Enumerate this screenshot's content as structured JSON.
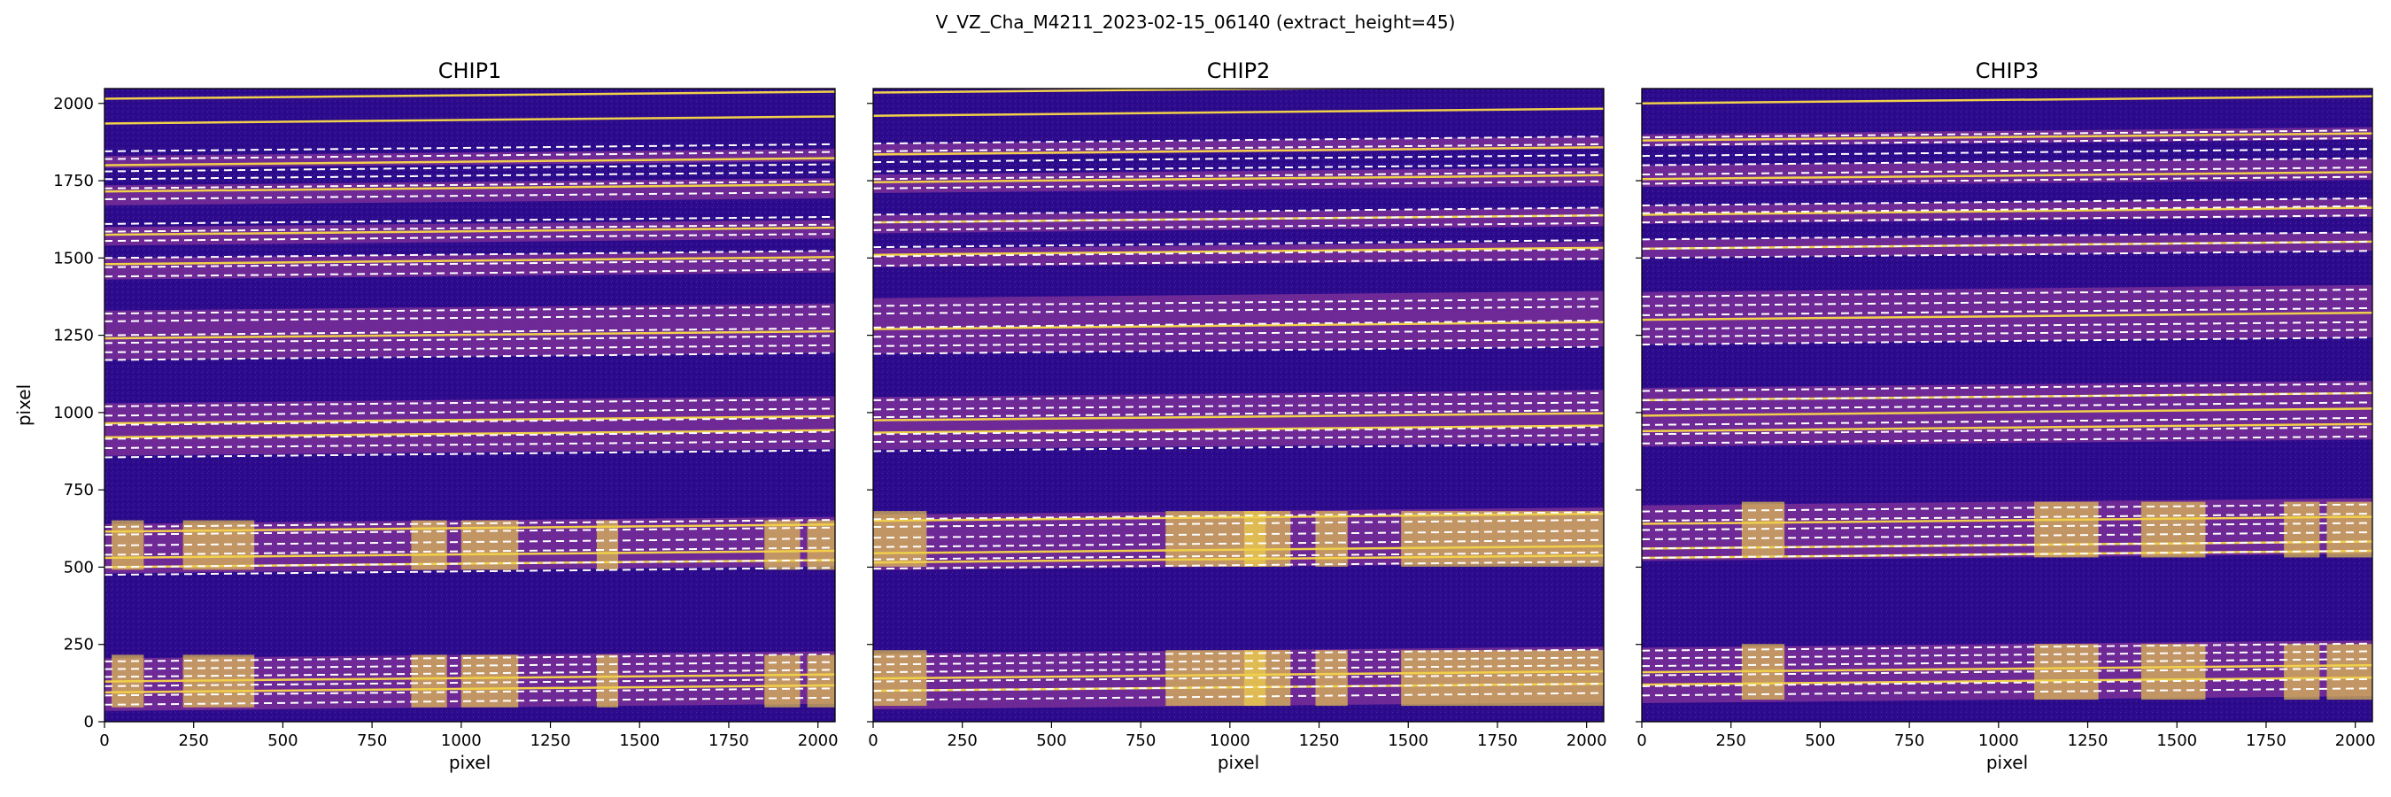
{
  "figure": {
    "suptitle": "V_VZ_Cha_M4211_2023-02-15_06140  (extract_height=45)",
    "colors": {
      "background": "#2b0a8c",
      "trace_bright": "#f0d04a",
      "order_fill": "#7a2f98",
      "marker": "#ffffff"
    }
  },
  "chart_data": [
    {
      "type": "heatmap",
      "title": "CHIP1",
      "xlabel": "pixel",
      "ylabel": "pixel",
      "xlim": [
        0,
        2048
      ],
      "ylim": [
        0,
        2048
      ],
      "xticks": [
        0,
        250,
        500,
        750,
        1000,
        1250,
        1500,
        1750,
        2000
      ],
      "yticks": [
        0,
        250,
        500,
        750,
        1000,
        1250,
        1500,
        1750,
        2000
      ],
      "colormap": "plasma",
      "order_bands": [
        [
          35,
          205
        ],
        [
          480,
          640
        ],
        [
          860,
          1030
        ],
        [
          1170,
          1330
        ],
        [
          1430,
          1500
        ],
        [
          1540,
          1600
        ],
        [
          1670,
          1735
        ],
        [
          1790,
          1830
        ]
      ],
      "traces": [
        2015,
        1935,
        1800,
        1715,
        1575,
        1480,
        1240,
        965,
        920,
        530,
        500,
        615,
        130,
        95
      ],
      "extraction_lines": [
        1845,
        1820,
        1780,
        1755,
        1725,
        1690,
        1610,
        1585,
        1555,
        1500,
        1470,
        1440,
        1320,
        1295,
        1250,
        1225,
        1195,
        1170,
        1020,
        990,
        960,
        915,
        885,
        855,
        630,
        605,
        570,
        540,
        500,
        475,
        195,
        170,
        145,
        115,
        85,
        55
      ],
      "hot_columns": [
        [
          20,
          110
        ],
        [
          220,
          420
        ],
        [
          860,
          960
        ],
        [
          1000,
          1160
        ],
        [
          1380,
          1440
        ],
        [
          1850,
          1950
        ],
        [
          1970,
          2048
        ]
      ]
    },
    {
      "type": "heatmap",
      "title": "CHIP2",
      "xlabel": "pixel",
      "ylabel": "",
      "xlim": [
        0,
        2048
      ],
      "ylim": [
        0,
        2048
      ],
      "xticks": [
        0,
        250,
        500,
        750,
        1000,
        1250,
        1500,
        1750,
        2000
      ],
      "yticks": [
        0,
        250,
        500,
        750,
        1000,
        1250,
        1500,
        1750,
        2000
      ],
      "colormap": "plasma",
      "order_bands": [
        [
          40,
          220
        ],
        [
          490,
          670
        ],
        [
          880,
          1050
        ],
        [
          1190,
          1370
        ],
        [
          1470,
          1530
        ],
        [
          1580,
          1640
        ],
        [
          1710,
          1770
        ],
        [
          1830,
          1870
        ]
      ],
      "traces": [
        2035,
        1960,
        1835,
        1745,
        1615,
        1510,
        1270,
        975,
        935,
        545,
        515,
        650,
        140,
        100
      ],
      "extraction_lines": [
        1870,
        1845,
        1810,
        1780,
        1755,
        1725,
        1640,
        1615,
        1590,
        1535,
        1505,
        1475,
        1345,
        1320,
        1275,
        1245,
        1215,
        1190,
        1040,
        1010,
        985,
        930,
        905,
        875,
        655,
        630,
        595,
        565,
        525,
        495,
        210,
        185,
        160,
        130,
        100,
        70
      ],
      "hot_columns": [
        [
          0,
          150
        ],
        [
          820,
          1170
        ],
        [
          1040,
          1100
        ],
        [
          1240,
          1330
        ],
        [
          1480,
          1700
        ],
        [
          1700,
          2048
        ]
      ]
    },
    {
      "type": "heatmap",
      "title": "CHIP3",
      "xlabel": "pixel",
      "ylabel": "",
      "xlim": [
        0,
        2048
      ],
      "ylim": [
        0,
        2048
      ],
      "xticks": [
        0,
        250,
        500,
        750,
        1000,
        1250,
        1500,
        1750,
        2000
      ],
      "yticks": [
        0,
        250,
        500,
        750,
        1000,
        1250,
        1500,
        1750,
        2000
      ],
      "colormap": "plasma",
      "order_bands": [
        [
          60,
          240
        ],
        [
          520,
          700
        ],
        [
          890,
          1080
        ],
        [
          1220,
          1390
        ],
        [
          1500,
          1560
        ],
        [
          1610,
          1670
        ],
        [
          1730,
          1800
        ],
        [
          1860,
          1900
        ]
      ],
      "traces": [
        2000,
        1880,
        1755,
        1640,
        1530,
        1300,
        1040,
        990,
        940,
        560,
        530,
        640,
        160,
        120
      ],
      "extraction_lines": [
        1890,
        1865,
        1830,
        1800,
        1770,
        1740,
        1670,
        1645,
        1615,
        1560,
        1530,
        1500,
        1375,
        1345,
        1315,
        1270,
        1245,
        1220,
        1070,
        1040,
        1010,
        960,
        930,
        900,
        680,
        650,
        620,
        590,
        560,
        530,
        230,
        205,
        180,
        150,
        115,
        85
      ],
      "hot_columns": [
        [
          280,
          400
        ],
        [
          1100,
          1280
        ],
        [
          1400,
          1580
        ],
        [
          1800,
          1900
        ],
        [
          1920,
          2048
        ]
      ]
    }
  ]
}
